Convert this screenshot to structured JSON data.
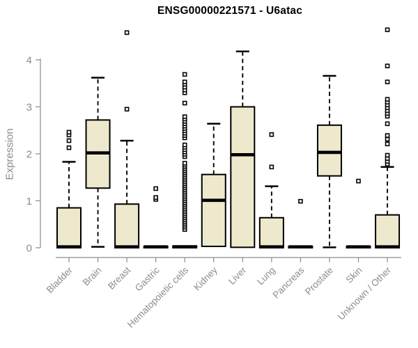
{
  "chart_data": {
    "type": "boxplot",
    "title": "ENSG00000221571 - U6atac",
    "ylabel": "Expression",
    "xlabel": "",
    "ylim": [
      0,
      4.7
    ],
    "yticks": [
      0,
      1,
      2,
      3,
      4
    ],
    "grid": false,
    "legend": "none",
    "categories": [
      "Bladder",
      "Brain",
      "Breast",
      "Gastric",
      "Hematopoietic cells",
      "Kidney",
      "Liver",
      "Lung",
      "Pancreas",
      "Prostate",
      "Skin",
      "Unknown / Other"
    ],
    "boxes": [
      {
        "category": "Bladder",
        "whisker_low": 0,
        "q1": 0,
        "median": 0.02,
        "q3": 0.85,
        "whisker_high": 1.83,
        "outliers": [
          2.13,
          2.28,
          2.4,
          2.46
        ]
      },
      {
        "category": "Brain",
        "whisker_low": 0.02,
        "q1": 1.27,
        "median": 2.02,
        "q3": 2.72,
        "whisker_high": 3.62,
        "outliers": []
      },
      {
        "category": "Breast",
        "whisker_low": 0,
        "q1": 0,
        "median": 0.02,
        "q3": 0.93,
        "whisker_high": 2.28,
        "outliers": [
          2.95,
          4.58
        ]
      },
      {
        "category": "Gastric",
        "whisker_low": 0,
        "q1": 0,
        "median": 0.02,
        "q3": 0.03,
        "whisker_high": 0.03,
        "outliers": [
          1.03,
          1.07,
          1.26
        ]
      },
      {
        "category": "Hematopoietic cells",
        "whisker_low": 0,
        "q1": 0,
        "median": 0.02,
        "q3": 0.04,
        "whisker_high": 0.05,
        "outliers": [
          0.39,
          0.44,
          0.48,
          0.52,
          0.56,
          0.6,
          0.64,
          0.68,
          0.72,
          0.76,
          0.8,
          0.84,
          0.88,
          0.92,
          0.96,
          1.0,
          1.04,
          1.08,
          1.12,
          1.16,
          1.2,
          1.24,
          1.28,
          1.32,
          1.36,
          1.4,
          1.44,
          1.48,
          1.52,
          1.56,
          1.6,
          1.64,
          1.68,
          1.72,
          1.76,
          1.8,
          1.94,
          1.99,
          2.04,
          2.09,
          2.14,
          2.19,
          2.34,
          2.39,
          2.44,
          2.49,
          2.54,
          2.59,
          2.64,
          2.69,
          2.74,
          2.79,
          3.08,
          3.3,
          3.36,
          3.42,
          3.48,
          3.53,
          3.69
        ]
      },
      {
        "category": "Kidney",
        "whisker_low": 0,
        "q1": 0.03,
        "median": 1.01,
        "q3": 1.56,
        "whisker_high": 2.64,
        "outliers": []
      },
      {
        "category": "Liver",
        "whisker_low": 0,
        "q1": 0.01,
        "median": 1.98,
        "q3": 3.0,
        "whisker_high": 4.18,
        "outliers": []
      },
      {
        "category": "Lung",
        "whisker_low": 0,
        "q1": 0,
        "median": 0.02,
        "q3": 0.64,
        "whisker_high": 1.31,
        "outliers": [
          1.72,
          2.41
        ]
      },
      {
        "category": "Pancreas",
        "whisker_low": 0,
        "q1": 0,
        "median": 0.02,
        "q3": 0.03,
        "whisker_high": 0.03,
        "outliers": [
          0.99
        ]
      },
      {
        "category": "Prostate",
        "whisker_low": 0.01,
        "q1": 1.53,
        "median": 2.03,
        "q3": 2.61,
        "whisker_high": 3.66,
        "outliers": []
      },
      {
        "category": "Skin",
        "whisker_low": 0,
        "q1": 0,
        "median": 0.02,
        "q3": 0.03,
        "whisker_high": 0.03,
        "outliers": [
          1.42
        ]
      },
      {
        "category": "Unknown / Other",
        "whisker_low": 0,
        "q1": 0,
        "median": 0.02,
        "q3": 0.7,
        "whisker_high": 1.72,
        "outliers": [
          1.78,
          1.84,
          1.9,
          1.97,
          2.21,
          2.31,
          2.39,
          2.64,
          2.8,
          2.86,
          2.92,
          2.98,
          3.04,
          3.1,
          3.16,
          3.53,
          3.87,
          4.64
        ]
      }
    ],
    "colors": {
      "box_fill": "#EEE8CD",
      "box_stroke": "#000000",
      "median": "#000000",
      "outlier_stroke": "#000000",
      "outlier_fill": "#ffffff",
      "axis": "#8c8c8c",
      "tick_label": "#8c8c8c",
      "title": "#000000"
    }
  }
}
